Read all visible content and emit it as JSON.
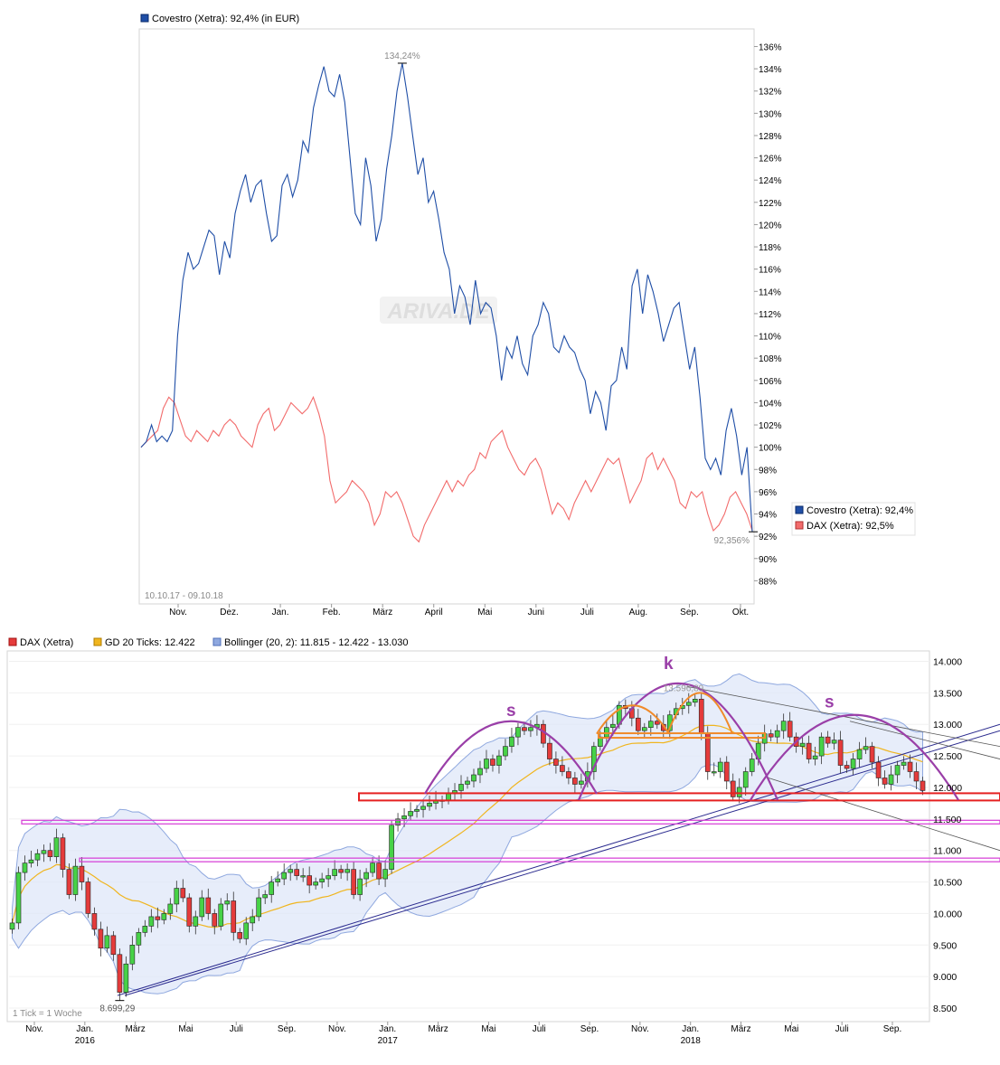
{
  "chart_data": [
    {
      "type": "line",
      "legend_top": "Covestro (Xetra): 92,4% (in EUR)",
      "period_label": "10.10.17 - 09.10.18",
      "watermark": "ARIVA.DE",
      "x_ticks": [
        "Nov.",
        "Dez.",
        "Jan.",
        "Feb.",
        "März",
        "April",
        "Mai",
        "Juni",
        "Juli",
        "Aug.",
        "Sep.",
        "Okt."
      ],
      "y_ticks": [
        "136%",
        "134%",
        "132%",
        "130%",
        "128%",
        "126%",
        "124%",
        "122%",
        "120%",
        "118%",
        "116%",
        "114%",
        "112%",
        "110%",
        "108%",
        "106%",
        "104%",
        "102%",
        "100%",
        "98%",
        "96%",
        "94%",
        "92%",
        "90%",
        "88%"
      ],
      "ylim": [
        86,
        137.5
      ],
      "annotations": {
        "max_label": "134,24%",
        "last_label": "92,356%"
      },
      "side_legend": [
        {
          "label": "Covestro (Xetra): 92,4%",
          "color": "#1f4ea6"
        },
        {
          "label": "DAX (Xetra): 92,5%",
          "color": "#f26b6b"
        }
      ],
      "series": [
        {
          "name": "Covestro (Xetra)",
          "color": "#1f4ea6",
          "values": [
            100,
            100.5,
            102,
            100.5,
            101,
            100.5,
            101.5,
            110,
            115,
            117.5,
            116,
            116.5,
            118,
            119.5,
            119,
            115.5,
            118.5,
            117,
            121,
            123,
            124.5,
            122,
            123.5,
            124,
            121,
            118.5,
            119,
            123.5,
            124.5,
            122.5,
            124,
            127.5,
            126.5,
            130.5,
            132.5,
            134.2,
            132,
            131.5,
            133.5,
            131,
            126,
            121,
            120,
            126,
            123.5,
            118.5,
            120.5,
            125,
            128,
            132,
            134.5,
            131.5,
            128,
            124.5,
            126,
            122,
            123,
            120.5,
            117.5,
            116,
            112,
            114.5,
            113.5,
            111,
            115,
            112,
            113,
            112.5,
            110,
            106,
            109,
            108,
            110,
            107.5,
            106.5,
            110,
            111,
            113,
            112,
            109,
            108.5,
            110,
            109,
            108.5,
            107,
            106,
            103,
            105,
            104,
            101.5,
            105.5,
            106,
            109,
            107,
            114.5,
            116,
            112,
            115.5,
            114,
            112,
            109.5,
            111,
            112.5,
            113,
            110,
            107,
            109,
            104.5,
            99,
            98,
            99,
            97.5,
            101.5,
            103.5,
            101,
            97.5,
            100,
            92.4
          ]
        },
        {
          "name": "DAX (Xetra)",
          "color": "#f26b6b",
          "values": [
            100,
            100.5,
            101,
            101.5,
            103.5,
            104.5,
            104,
            102.5,
            101,
            100.5,
            101.5,
            101,
            100.5,
            101.5,
            101,
            102,
            102.5,
            102,
            101,
            100.5,
            100,
            102,
            103,
            103.5,
            101.5,
            102,
            103,
            104,
            103.5,
            103,
            103.5,
            104.5,
            103,
            101,
            97,
            95,
            95.5,
            96,
            97,
            96.5,
            96,
            95,
            93,
            94,
            96,
            95.5,
            96,
            95,
            93.5,
            92,
            91.5,
            93,
            94,
            95,
            96,
            97,
            96,
            97,
            96.5,
            97.5,
            98,
            99.5,
            99,
            100.5,
            101,
            101.5,
            100,
            99,
            98,
            97.5,
            98.5,
            99,
            98,
            96,
            94,
            95,
            94.5,
            93.5,
            95,
            96,
            97,
            96,
            97,
            98,
            99,
            98.5,
            99,
            97,
            95,
            96,
            97,
            99,
            99.5,
            98,
            99,
            98,
            97,
            95,
            94.5,
            96,
            95.5,
            96,
            94,
            92.5,
            93,
            94,
            95.5,
            96,
            95,
            94,
            92.5
          ]
        }
      ]
    },
    {
      "type": "candlestick",
      "legend": [
        {
          "label": "DAX (Xetra)",
          "color": "#e53b3b"
        },
        {
          "label": "GD 20 Ticks: 12.422",
          "color": "#f0b51e"
        },
        {
          "label": "Bollinger (20, 2): 11.815 - 12.422 - 13.030",
          "color": "#8fa8df"
        }
      ],
      "x_ticks": [
        "Nov.",
        "Jan.",
        "März",
        "Mai",
        "Juli",
        "Sep.",
        "Nov.",
        "Jan.",
        "März",
        "Mai",
        "Juli",
        "Sep.",
        "Nov.",
        "Jan.",
        "März",
        "Mai",
        "Juli",
        "Sep."
      ],
      "year_labels": [
        "2016",
        "2017",
        "2018"
      ],
      "y_ticks": [
        "14.000",
        "13.500",
        "13.000",
        "12.500",
        "12.000",
        "11.500",
        "11.000",
        "10.500",
        "10.000",
        "9.500",
        "9.000",
        "8.500"
      ],
      "ylim": [
        8300,
        14150
      ],
      "annotations": {
        "high_label": "13.596,89",
        "low_label": "8.699,29",
        "tick_note": "1 Tick = 1 Woche",
        "pattern_left": "s",
        "pattern_head": "k",
        "pattern_right": "s"
      },
      "closes": [
        9850,
        10650,
        10800,
        10850,
        10950,
        11000,
        10900,
        11200,
        10700,
        10300,
        10750,
        10500,
        10000,
        9750,
        9450,
        9650,
        9350,
        8750,
        9200,
        9500,
        9700,
        9800,
        9950,
        9900,
        10000,
        10150,
        10400,
        10250,
        9800,
        9950,
        10250,
        10000,
        9800,
        10150,
        10200,
        9700,
        9600,
        9850,
        9950,
        10250,
        10300,
        10500,
        10550,
        10650,
        10700,
        10600,
        10600,
        10450,
        10500,
        10550,
        10600,
        10700,
        10650,
        10700,
        10300,
        10550,
        10650,
        10800,
        10550,
        10700,
        11400,
        11500,
        11550,
        11620,
        11650,
        11700,
        11750,
        11800,
        11800,
        11900,
        11950,
        12050,
        12100,
        12200,
        12300,
        12450,
        12350,
        12500,
        12650,
        12800,
        12950,
        12900,
        12950,
        13000,
        12700,
        12450,
        12350,
        12250,
        12150,
        12050,
        12100,
        12250,
        12650,
        12800,
        12950,
        13000,
        13300,
        13250,
        13100,
        12900,
        12950,
        13050,
        13000,
        12900,
        13150,
        13250,
        13300,
        13350,
        13400,
        12850,
        12250,
        12250,
        12400,
        12100,
        11850,
        12000,
        12250,
        12450,
        12700,
        12850,
        12800,
        12900,
        13050,
        12800,
        12650,
        12700,
        12450,
        12500,
        12800,
        12700,
        12750,
        12350,
        12300,
        12450,
        12600,
        12650,
        12400,
        12150,
        12050,
        12200,
        12350,
        12400,
        12250,
        12100,
        11950
      ]
    }
  ]
}
